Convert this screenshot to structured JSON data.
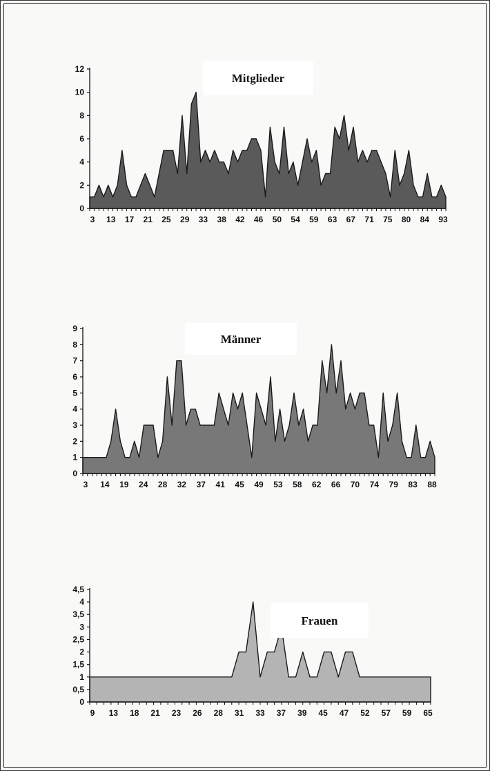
{
  "chart_data": [
    {
      "type": "area",
      "title": "Mitglieder",
      "color": "#5a5a5a",
      "y_ticks": [
        "0",
        "2",
        "4",
        "6",
        "8",
        "10",
        "12"
      ],
      "ylim": [
        0,
        12
      ],
      "x_tick_labels": [
        "3",
        "13",
        "17",
        "21",
        "25",
        "29",
        "33",
        "38",
        "42",
        "46",
        "50",
        "54",
        "59",
        "63",
        "67",
        "71",
        "75",
        "80",
        "84",
        "93"
      ],
      "values": [
        1,
        1,
        2,
        1,
        2,
        1,
        2,
        5,
        2,
        1,
        1,
        2,
        3,
        2,
        1,
        3,
        5,
        5,
        5,
        3,
        8,
        3,
        9,
        10,
        4,
        5,
        4,
        5,
        4,
        4,
        3,
        5,
        4,
        5,
        5,
        6,
        6,
        5,
        1,
        7,
        4,
        3,
        7,
        3,
        4,
        2,
        4,
        6,
        4,
        5,
        2,
        3,
        3,
        7,
        6,
        8,
        5,
        7,
        4,
        5,
        4,
        5,
        5,
        4,
        3,
        1,
        5,
        2,
        3,
        5,
        2,
        1,
        1,
        3,
        1,
        1,
        2,
        1
      ]
    },
    {
      "type": "area",
      "title": "Männer",
      "color": "#787878",
      "y_ticks": [
        "0",
        "1",
        "2",
        "3",
        "4",
        "5",
        "6",
        "7",
        "8",
        "9"
      ],
      "ylim": [
        0,
        9
      ],
      "x_tick_labels": [
        "3",
        "14",
        "19",
        "24",
        "28",
        "32",
        "37",
        "41",
        "45",
        "49",
        "53",
        "58",
        "62",
        "66",
        "70",
        "74",
        "79",
        "83",
        "88"
      ],
      "values": [
        1,
        1,
        1,
        1,
        1,
        1,
        2,
        4,
        2,
        1,
        1,
        2,
        1,
        3,
        3,
        3,
        1,
        2,
        6,
        3,
        7,
        7,
        3,
        4,
        4,
        3,
        3,
        3,
        3,
        5,
        4,
        3,
        5,
        4,
        5,
        3,
        1,
        5,
        4,
        3,
        6,
        2,
        4,
        2,
        3,
        5,
        3,
        4,
        2,
        3,
        3,
        7,
        5,
        8,
        5,
        7,
        4,
        5,
        4,
        5,
        5,
        3,
        3,
        1,
        5,
        2,
        3,
        5,
        2,
        1,
        1,
        3,
        1,
        1,
        2,
        1
      ]
    },
    {
      "type": "area",
      "title": "Frauen",
      "color": "#b4b4b4",
      "y_ticks": [
        "0",
        "0,5",
        "1",
        "1,5",
        "2",
        "2,5",
        "3",
        "3,5",
        "4",
        "4,5"
      ],
      "ylim": [
        0,
        4.5
      ],
      "x_tick_labels": [
        "9",
        "13",
        "18",
        "21",
        "23",
        "26",
        "28",
        "31",
        "33",
        "37",
        "39",
        "45",
        "47",
        "52",
        "57",
        "59",
        "65"
      ],
      "values": [
        1,
        1,
        1,
        1,
        1,
        1,
        1,
        1,
        1,
        1,
        1,
        1,
        1,
        1,
        1,
        1,
        1,
        1,
        1,
        1,
        1,
        2,
        2,
        4,
        1,
        2,
        2,
        3,
        1,
        1,
        2,
        1,
        1,
        2,
        2,
        1,
        2,
        2,
        1,
        1,
        1,
        1,
        1,
        1,
        1,
        1,
        1,
        1,
        1
      ]
    }
  ]
}
